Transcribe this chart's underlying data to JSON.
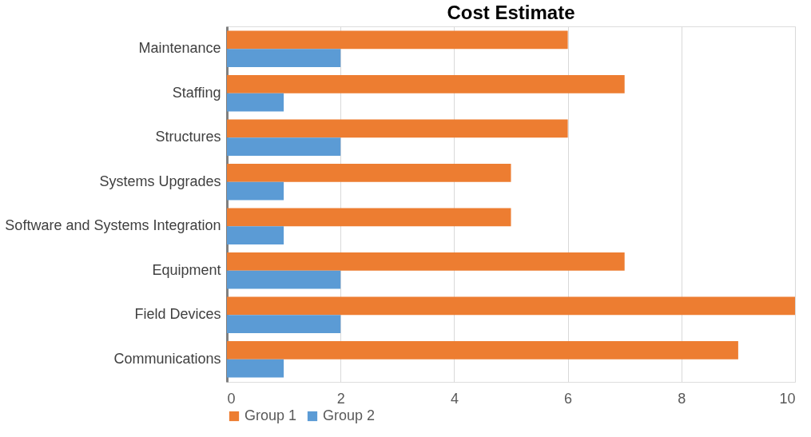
{
  "chart_data": {
    "type": "bar",
    "title": "Cost Estimate",
    "orientation": "horizontal",
    "categories": [
      "Maintenance",
      "Staffing",
      "Structures",
      "Systems Upgrades",
      "Software and Systems Integration",
      "Equipment",
      "Field Devices",
      "Communications"
    ],
    "series": [
      {
        "name": "Group 1",
        "color": "#ed7d31",
        "values": [
          6,
          7,
          6,
          5,
          5,
          7,
          10,
          9
        ]
      },
      {
        "name": "Group 2",
        "color": "#5b9bd5",
        "values": [
          2,
          1,
          2,
          1,
          1,
          2,
          2,
          1
        ]
      }
    ],
    "xlim": [
      0,
      10
    ],
    "xticks": [
      0,
      2,
      4,
      6,
      8,
      10
    ],
    "grid": "x",
    "legend": "bottom"
  }
}
